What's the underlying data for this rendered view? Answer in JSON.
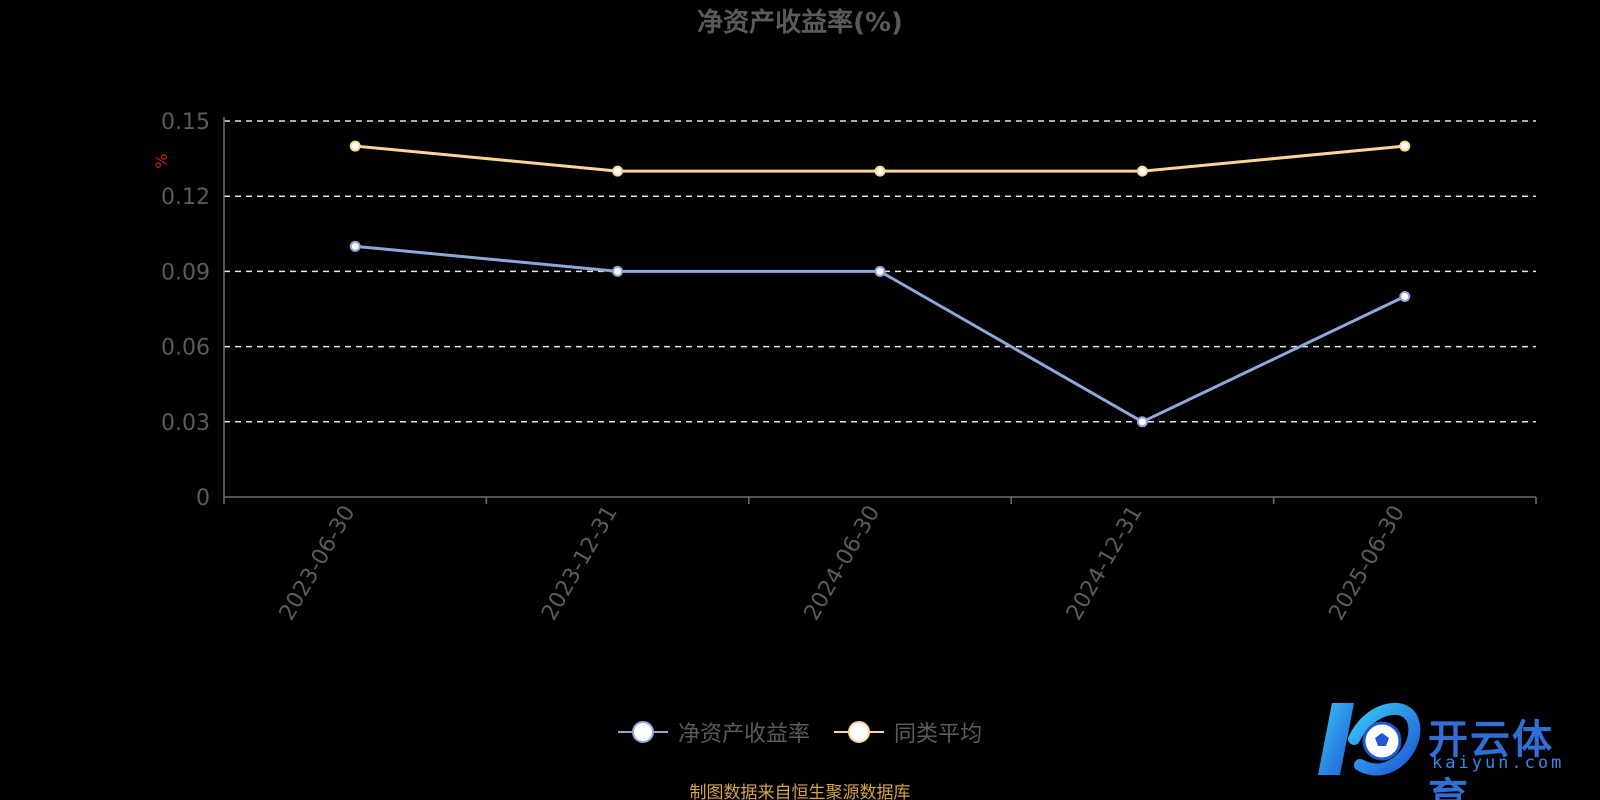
{
  "chart_data": {
    "type": "line",
    "title": "净资产收益率(%)",
    "ylabel": "%",
    "xlabel": "",
    "categories": [
      "2023-06-30",
      "2023-12-31",
      "2024-06-30",
      "2024-12-31",
      "2025-06-30"
    ],
    "series": [
      {
        "name": "净资产收益率",
        "values": [
          0.1,
          0.09,
          0.09,
          0.03,
          0.08
        ],
        "color": "#8fa8d8"
      },
      {
        "name": "同类平均",
        "values": [
          0.14,
          0.13,
          0.13,
          0.13,
          0.14
        ],
        "color": "#fcd699"
      }
    ],
    "ylim": [
      0,
      0.15
    ],
    "yticks": [
      "0",
      "0.03",
      "0.06",
      "0.09",
      "0.12",
      "0.15"
    ],
    "grid": true,
    "legend_position": "bottom-center"
  },
  "source_note": "制图数据来自恒生聚源数据库",
  "watermark": {
    "brand": "开云体育",
    "site": "kaiyun.com"
  }
}
